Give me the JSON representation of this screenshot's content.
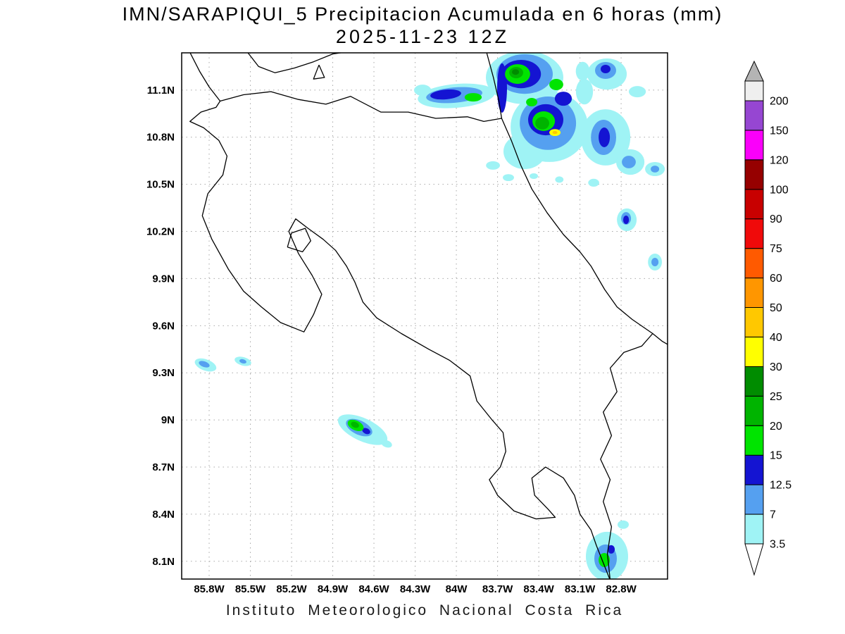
{
  "header": {
    "title": "IMN/SARAPIQUI_5 Precipitacion Acumulada en 6 horas (mm)",
    "datetime": "2025-11-23 12Z"
  },
  "footer": {
    "text": "Instituto Meteorologico Nacional Costa Rica"
  },
  "chart_data": {
    "type": "heatmap",
    "title": "IMN/SARAPIQUI_5 Precipitacion Acumulada en 6 horas (mm)",
    "valid_time": "2025-11-23 12Z",
    "units": "mm",
    "grid": true,
    "extent": {
      "lon_west": 86.0,
      "lon_east": 82.462,
      "lat_north": 11.337,
      "lat_south": 7.987
    },
    "x_axis": {
      "label": "longitude_w",
      "ticks": [
        {
          "label": "85.8W",
          "value": 85.8
        },
        {
          "label": "85.5W",
          "value": 85.5
        },
        {
          "label": "85.2W",
          "value": 85.2
        },
        {
          "label": "84.9W",
          "value": 84.9
        },
        {
          "label": "84.6W",
          "value": 84.6
        },
        {
          "label": "84.3W",
          "value": 84.3
        },
        {
          "label": "84W",
          "value": 84.0
        },
        {
          "label": "83.7W",
          "value": 83.7
        },
        {
          "label": "83.4W",
          "value": 83.4
        },
        {
          "label": "83.1W",
          "value": 83.1
        },
        {
          "label": "82.8W",
          "value": 82.8
        }
      ]
    },
    "y_axis": {
      "label": "latitude_n",
      "ticks": [
        {
          "label": "11.1N",
          "value": 11.1
        },
        {
          "label": "10.8N",
          "value": 10.8
        },
        {
          "label": "10.5N",
          "value": 10.5
        },
        {
          "label": "10.2N",
          "value": 10.2
        },
        {
          "label": "9.9N",
          "value": 9.9
        },
        {
          "label": "9.6N",
          "value": 9.6
        },
        {
          "label": "9.3N",
          "value": 9.3
        },
        {
          "label": "9N",
          "value": 9.0
        },
        {
          "label": "8.7N",
          "value": 8.7
        },
        {
          "label": "8.4N",
          "value": 8.4
        },
        {
          "label": "8.1N",
          "value": 8.1
        }
      ]
    },
    "colorbar": {
      "labels": [
        "3.5",
        "7",
        "12.5",
        "15",
        "20",
        "25",
        "30",
        "40",
        "50",
        "60",
        "75",
        "90",
        "100",
        "120",
        "150",
        "200"
      ],
      "values": [
        3.5,
        7,
        12.5,
        15,
        20,
        25,
        30,
        40,
        50,
        60,
        75,
        90,
        100,
        120,
        150,
        200
      ],
      "segment_colors": [
        "#9ff3f5",
        "#55a0f0",
        "#1414d2",
        "#00e400",
        "#00b400",
        "#008c00",
        "#ffff00",
        "#ffc800",
        "#ff9600",
        "#ff5a00",
        "#f00a0a",
        "#c80000",
        "#960000",
        "#fa00fa",
        "#9646d2"
      ],
      "above_max_color": "#efefef",
      "top_arrow_color": "#b4b4b4",
      "below_min_color": "#ffffff"
    },
    "precip_blob_format": [
      "lon_w",
      "lat_n",
      "radius_lon_deg",
      "radius_lat_deg",
      "rotation_deg",
      "level_mm"
    ],
    "precip_blobs": [
      [
        84.0,
        11.063,
        0.282,
        0.076,
        -5,
        3.5
      ],
      [
        84.015,
        11.068,
        0.205,
        0.049,
        -5,
        7
      ],
      [
        84.077,
        11.072,
        0.113,
        0.031,
        -5,
        12.5
      ],
      [
        83.877,
        11.054,
        0.062,
        0.027,
        0,
        15
      ],
      [
        84.246,
        11.099,
        0.062,
        0.036,
        0,
        3.5
      ],
      [
        83.503,
        11.18,
        0.282,
        0.17,
        0,
        3.5
      ],
      [
        83.323,
        10.866,
        0.282,
        0.224,
        0,
        3.5
      ],
      [
        83.503,
        10.709,
        0.154,
        0.112,
        0,
        3.5
      ],
      [
        83.503,
        11.202,
        0.205,
        0.126,
        0,
        7
      ],
      [
        83.333,
        10.889,
        0.205,
        0.17,
        0,
        7
      ],
      [
        83.528,
        11.202,
        0.144,
        0.09,
        0,
        12.5
      ],
      [
        83.349,
        10.911,
        0.128,
        0.099,
        0,
        12.5
      ],
      [
        83.221,
        11.045,
        0.062,
        0.045,
        0,
        12.5
      ],
      [
        83.667,
        11.113,
        0.036,
        0.157,
        0,
        12.5
      ],
      [
        83.554,
        11.202,
        0.092,
        0.063,
        0,
        15
      ],
      [
        83.364,
        10.902,
        0.082,
        0.063,
        0,
        15
      ],
      [
        83.272,
        11.135,
        0.051,
        0.036,
        0,
        15
      ],
      [
        83.451,
        11.023,
        0.041,
        0.027,
        0,
        15
      ],
      [
        83.564,
        11.211,
        0.051,
        0.036,
        0,
        20
      ],
      [
        83.374,
        10.889,
        0.051,
        0.04,
        0,
        20
      ],
      [
        83.569,
        11.215,
        0.026,
        0.018,
        0,
        25
      ],
      [
        83.282,
        10.83,
        0.041,
        0.022,
        0,
        30
      ],
      [
        83.282,
        10.83,
        0.018,
        0.01,
        0,
        40
      ],
      [
        82.903,
        11.202,
        0.144,
        0.099,
        0,
        3.5
      ],
      [
        82.913,
        10.799,
        0.18,
        0.179,
        0,
        3.5
      ],
      [
        82.733,
        10.642,
        0.103,
        0.081,
        0,
        3.5
      ],
      [
        82.913,
        11.225,
        0.077,
        0.054,
        0,
        7
      ],
      [
        82.928,
        10.799,
        0.092,
        0.112,
        0,
        7
      ],
      [
        82.744,
        10.642,
        0.051,
        0.04,
        0,
        7
      ],
      [
        82.923,
        10.799,
        0.041,
        0.063,
        0,
        12.5
      ],
      [
        82.913,
        11.234,
        0.036,
        0.027,
        0,
        12.5
      ],
      [
        82.682,
        11.09,
        0.062,
        0.036,
        0,
        3.5
      ],
      [
        83.067,
        11.09,
        0.062,
        0.081,
        0,
        3.5
      ],
      [
        83.08,
        11.22,
        0.05,
        0.06,
        0,
        3.5
      ],
      [
        82.554,
        10.597,
        0.072,
        0.045,
        0,
        3.5
      ],
      [
        82.554,
        10.597,
        0.031,
        0.022,
        0,
        7
      ],
      [
        83.733,
        10.62,
        0.051,
        0.027,
        0,
        3.5
      ],
      [
        83.621,
        10.543,
        0.041,
        0.022,
        0,
        3.5
      ],
      [
        83.436,
        10.552,
        0.031,
        0.018,
        0,
        3.5
      ],
      [
        83.25,
        10.53,
        0.03,
        0.02,
        0,
        3.5
      ],
      [
        83.0,
        10.51,
        0.04,
        0.025,
        0,
        3.5
      ],
      [
        82.759,
        10.274,
        0.072,
        0.072,
        0,
        3.5
      ],
      [
        82.764,
        10.283,
        0.036,
        0.04,
        0,
        7
      ],
      [
        82.764,
        10.274,
        0.021,
        0.027,
        0,
        12.5
      ],
      [
        82.554,
        10.005,
        0.051,
        0.054,
        0,
        3.5
      ],
      [
        82.554,
        10.005,
        0.026,
        0.027,
        0,
        7
      ],
      [
        85.826,
        9.35,
        0.082,
        0.036,
        20,
        3.5
      ],
      [
        85.836,
        9.355,
        0.041,
        0.018,
        20,
        7
      ],
      [
        85.554,
        9.373,
        0.062,
        0.027,
        15,
        3.5
      ],
      [
        85.554,
        9.373,
        0.026,
        0.013,
        15,
        7
      ],
      [
        84.682,
        8.938,
        0.195,
        0.072,
        25,
        3.5
      ],
      [
        84.708,
        8.951,
        0.103,
        0.045,
        25,
        7
      ],
      [
        84.733,
        8.965,
        0.062,
        0.031,
        25,
        15
      ],
      [
        84.738,
        8.969,
        0.031,
        0.018,
        25,
        20
      ],
      [
        84.656,
        8.929,
        0.031,
        0.018,
        25,
        12.5
      ],
      [
        84.508,
        8.848,
        0.041,
        0.022,
        20,
        3.5
      ],
      [
        82.903,
        8.131,
        0.154,
        0.157,
        0,
        3.5
      ],
      [
        82.913,
        8.117,
        0.082,
        0.09,
        0,
        7
      ],
      [
        82.923,
        8.108,
        0.041,
        0.045,
        0,
        15
      ],
      [
        82.872,
        8.176,
        0.026,
        0.027,
        0,
        12.5
      ],
      [
        82.785,
        8.333,
        0.041,
        0.027,
        0,
        3.5
      ]
    ],
    "coastlines": {
      "costa_rica": [
        [
          85.72,
          11.03
        ],
        [
          85.55,
          11.07
        ],
        [
          85.35,
          11.09
        ],
        [
          85.15,
          11.04
        ],
        [
          84.95,
          11.01
        ],
        [
          84.77,
          11.06
        ],
        [
          84.55,
          10.96
        ],
        [
          84.35,
          10.96
        ],
        [
          84.15,
          10.92
        ],
        [
          83.92,
          10.93
        ],
        [
          83.8,
          10.9
        ],
        [
          83.67,
          10.92
        ],
        [
          83.6,
          10.78
        ],
        [
          83.53,
          10.62
        ],
        [
          83.45,
          10.47
        ],
        [
          83.34,
          10.32
        ],
        [
          83.22,
          10.18
        ],
        [
          83.1,
          10.07
        ],
        [
          83.02,
          9.98
        ],
        [
          82.92,
          9.83
        ],
        [
          82.83,
          9.72
        ],
        [
          82.72,
          9.64
        ],
        [
          82.57,
          9.55
        ],
        [
          82.65,
          9.47
        ],
        [
          82.78,
          9.43
        ],
        [
          82.88,
          9.33
        ],
        [
          82.83,
          9.18
        ],
        [
          82.93,
          9.05
        ],
        [
          82.87,
          8.9
        ],
        [
          82.95,
          8.75
        ],
        [
          82.88,
          8.62
        ],
        [
          82.93,
          8.48
        ],
        [
          82.87,
          8.32
        ],
        [
          82.9,
          8.15
        ],
        [
          82.88,
          7.98
        ],
        [
          82.98,
          8.2
        ],
        [
          83.02,
          8.3
        ],
        [
          83.1,
          8.4
        ],
        [
          83.14,
          8.52
        ],
        [
          83.22,
          8.63
        ],
        [
          83.35,
          8.7
        ],
        [
          83.45,
          8.63
        ],
        [
          83.43,
          8.52
        ],
        [
          83.33,
          8.43
        ],
        [
          83.28,
          8.38
        ],
        [
          83.42,
          8.37
        ],
        [
          83.58,
          8.42
        ],
        [
          83.7,
          8.52
        ],
        [
          83.76,
          8.62
        ],
        [
          83.68,
          8.7
        ],
        [
          83.64,
          8.8
        ],
        [
          83.66,
          8.92
        ],
        [
          83.74,
          9.0
        ],
        [
          83.85,
          9.12
        ],
        [
          83.9,
          9.28
        ],
        [
          84.05,
          9.38
        ],
        [
          84.2,
          9.45
        ],
        [
          84.4,
          9.55
        ],
        [
          84.58,
          9.65
        ],
        [
          84.68,
          9.75
        ],
        [
          84.74,
          9.88
        ],
        [
          84.8,
          9.98
        ],
        [
          84.88,
          10.08
        ],
        [
          84.97,
          10.15
        ],
        [
          85.08,
          10.22
        ],
        [
          85.17,
          10.28
        ],
        [
          85.22,
          10.2
        ],
        [
          85.15,
          10.06
        ],
        [
          85.05,
          9.92
        ],
        [
          84.98,
          9.8
        ],
        [
          85.04,
          9.67
        ],
        [
          85.11,
          9.56
        ],
        [
          85.28,
          9.62
        ],
        [
          85.42,
          9.72
        ],
        [
          85.55,
          9.82
        ],
        [
          85.66,
          9.96
        ],
        [
          85.78,
          10.15
        ],
        [
          85.85,
          10.3
        ],
        [
          85.81,
          10.44
        ],
        [
          85.7,
          10.56
        ],
        [
          85.67,
          10.68
        ],
        [
          85.73,
          10.78
        ],
        [
          85.84,
          10.86
        ],
        [
          85.94,
          10.9
        ],
        [
          85.86,
          10.96
        ],
        [
          85.75,
          10.99
        ],
        [
          85.72,
          11.03
        ]
      ],
      "gulf_island": [
        [
          85.23,
          10.1
        ],
        [
          85.12,
          10.07
        ],
        [
          85.06,
          10.14
        ],
        [
          85.1,
          10.22
        ],
        [
          85.2,
          10.19
        ],
        [
          85.23,
          10.1
        ]
      ],
      "nicaragua_pacific": [
        [
          85.72,
          11.03
        ],
        [
          85.8,
          11.12
        ],
        [
          85.87,
          11.22
        ],
        [
          85.94,
          11.34
        ]
      ],
      "lake_nicaragua_shore": [
        [
          85.52,
          11.34
        ],
        [
          85.44,
          11.25
        ],
        [
          85.32,
          11.21
        ],
        [
          85.18,
          11.24
        ],
        [
          85.04,
          11.28
        ],
        [
          84.9,
          11.33
        ],
        [
          84.82,
          11.34
        ]
      ],
      "ometepe_island": [
        [
          85.0,
          11.26
        ],
        [
          84.96,
          11.18
        ],
        [
          85.04,
          11.17
        ],
        [
          85.0,
          11.26
        ]
      ],
      "nicaragua_caribbean": [
        [
          83.78,
          11.34
        ],
        [
          83.73,
          11.18
        ],
        [
          83.69,
          11.03
        ],
        [
          83.67,
          10.92
        ]
      ],
      "panama_caribbean": [
        [
          82.57,
          9.55
        ],
        [
          82.5,
          9.5
        ],
        [
          82.42,
          9.46
        ]
      ]
    }
  }
}
